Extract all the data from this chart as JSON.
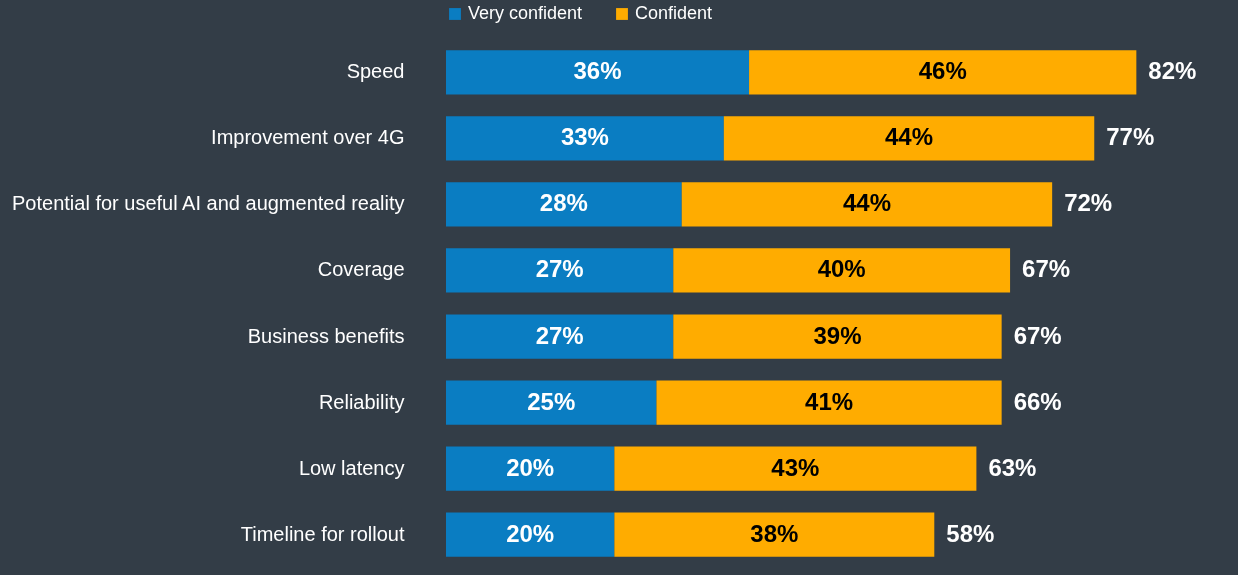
{
  "chart_data": {
    "type": "bar",
    "orientation": "horizontal",
    "stacked": true,
    "legend": "top",
    "grid": false,
    "tick_labels": "y",
    "categories": [
      "Speed",
      "Improvement over 4G",
      "Potential for useful AI and augmented reality",
      "Coverage",
      "Business benefits",
      "Reliability",
      "Low latency",
      "Timeline for rollout"
    ],
    "series": [
      {
        "name": "Very confident",
        "color": "#0a7dc2",
        "values": [
          36,
          33,
          28,
          27,
          27,
          25,
          20,
          20
        ],
        "value_labels": [
          "36%",
          "33%",
          "28%",
          "27%",
          "27%",
          "25%",
          "20%",
          "20%"
        ]
      },
      {
        "name": "Confident",
        "color": "#ffac00",
        "values": [
          46,
          44,
          44,
          40,
          39,
          41,
          43,
          38
        ],
        "value_labels": [
          "46%",
          "44%",
          "44%",
          "40%",
          "39%",
          "41%",
          "43%",
          "38%"
        ]
      }
    ],
    "totals": [
      "82%",
      "77%",
      "72%",
      "67%",
      "67%",
      "66%",
      "63%",
      "58%"
    ]
  }
}
